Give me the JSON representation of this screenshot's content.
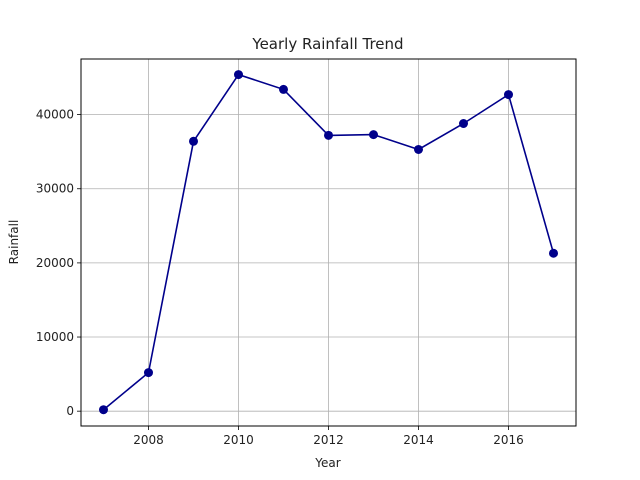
{
  "chart_data": {
    "type": "line",
    "title": "Yearly Rainfall Trend",
    "xlabel": "Year",
    "ylabel": "Rainfall",
    "x": [
      2007,
      2008,
      2009,
      2010,
      2011,
      2012,
      2013,
      2014,
      2015,
      2016,
      2017
    ],
    "series": [
      {
        "values": [
          200,
          5200,
          36400,
          45400,
          43400,
          37200,
          37300,
          35300,
          38800,
          42700,
          21300
        ],
        "color": "#00008b",
        "marker": "circle"
      }
    ],
    "xlim": [
      2006.5,
      2017.5
    ],
    "ylim": [
      -2000,
      47500
    ],
    "xticks": [
      2008,
      2010,
      2012,
      2014,
      2016
    ],
    "yticks": [
      0,
      10000,
      20000,
      30000,
      40000
    ],
    "grid": true
  }
}
